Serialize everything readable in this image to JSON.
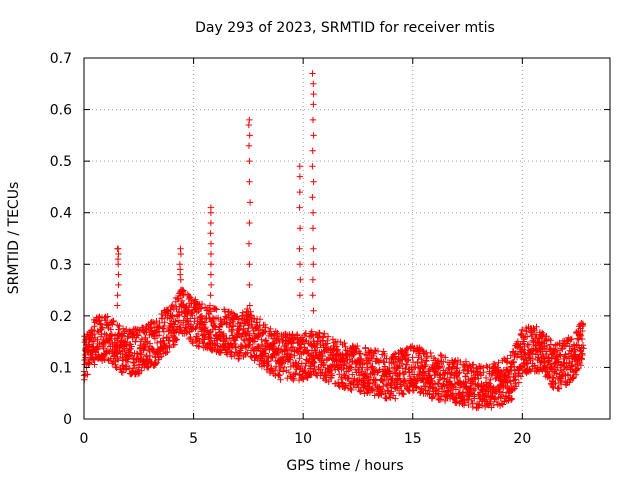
{
  "chart_data": {
    "type": "scatter",
    "title": "Day 293 of 2023, SRMTID for receiver mtis",
    "xlabel": "GPS time / hours",
    "ylabel": "SRMTID / TECUs",
    "xlim": [
      0,
      24
    ],
    "ylim": [
      0,
      0.7
    ],
    "xticks": [
      0,
      5,
      10,
      15,
      20
    ],
    "yticks": [
      0,
      0.1,
      0.2,
      0.3,
      0.4,
      0.5,
      0.6,
      0.7
    ],
    "xtick_labels": [
      "0",
      "5",
      "10",
      "15",
      "20"
    ],
    "ytick_labels": [
      "0",
      "0.1",
      "0.2",
      "0.3",
      "0.4",
      "0.5",
      "0.6",
      "0.7"
    ],
    "grid": true,
    "marker": "+",
    "marker_color": "#ff0000",
    "series": [
      {
        "name": "SRMTID",
        "baseline": [
          [
            0,
            0.12
          ],
          [
            0.5,
            0.15
          ],
          [
            1.0,
            0.16
          ],
          [
            1.5,
            0.14
          ],
          [
            2.0,
            0.13
          ],
          [
            2.5,
            0.13
          ],
          [
            3.0,
            0.14
          ],
          [
            3.5,
            0.16
          ],
          [
            4.0,
            0.18
          ],
          [
            4.5,
            0.21
          ],
          [
            5.0,
            0.19
          ],
          [
            5.5,
            0.18
          ],
          [
            6.0,
            0.17
          ],
          [
            6.5,
            0.17
          ],
          [
            7.0,
            0.16
          ],
          [
            7.5,
            0.17
          ],
          [
            8.0,
            0.15
          ],
          [
            8.5,
            0.13
          ],
          [
            9.0,
            0.12
          ],
          [
            9.5,
            0.12
          ],
          [
            10.0,
            0.12
          ],
          [
            10.5,
            0.13
          ],
          [
            11.0,
            0.12
          ],
          [
            11.5,
            0.11
          ],
          [
            12.0,
            0.1
          ],
          [
            12.5,
            0.1
          ],
          [
            13.0,
            0.09
          ],
          [
            13.5,
            0.09
          ],
          [
            14.0,
            0.08
          ],
          [
            14.5,
            0.09
          ],
          [
            15.0,
            0.1
          ],
          [
            15.5,
            0.09
          ],
          [
            16.0,
            0.08
          ],
          [
            16.5,
            0.08
          ],
          [
            17.0,
            0.07
          ],
          [
            17.5,
            0.07
          ],
          [
            18.0,
            0.06
          ],
          [
            18.5,
            0.06
          ],
          [
            19.0,
            0.07
          ],
          [
            19.5,
            0.08
          ],
          [
            20.0,
            0.13
          ],
          [
            20.5,
            0.14
          ],
          [
            21.0,
            0.12
          ],
          [
            21.5,
            0.1
          ],
          [
            22.0,
            0.11
          ],
          [
            22.5,
            0.13
          ],
          [
            22.8,
            0.15
          ]
        ],
        "spikes": [
          {
            "x": 1.55,
            "values": [
              0.33,
              0.33,
              0.32,
              0.31,
              0.3,
              0.28,
              0.26,
              0.24,
              0.22
            ]
          },
          {
            "x": 4.4,
            "values": [
              0.33,
              0.32,
              0.3,
              0.29,
              0.28,
              0.27,
              0.25,
              0.24
            ]
          },
          {
            "x": 5.8,
            "values": [
              0.41,
              0.4,
              0.38,
              0.36,
              0.34,
              0.32,
              0.3,
              0.28,
              0.26,
              0.24
            ]
          },
          {
            "x": 7.55,
            "values": [
              0.58,
              0.57,
              0.55,
              0.53,
              0.5,
              0.46,
              0.42,
              0.38,
              0.34,
              0.3,
              0.26,
              0.22
            ]
          },
          {
            "x": 9.85,
            "values": [
              0.49,
              0.47,
              0.44,
              0.41,
              0.37,
              0.33,
              0.3,
              0.27,
              0.24
            ]
          },
          {
            "x": 10.45,
            "values": [
              0.67,
              0.65,
              0.63,
              0.61,
              0.58,
              0.55,
              0.52,
              0.49,
              0.46,
              0.43,
              0.4,
              0.37,
              0.33,
              0.3,
              0.27,
              0.24,
              0.21
            ]
          }
        ]
      }
    ]
  }
}
